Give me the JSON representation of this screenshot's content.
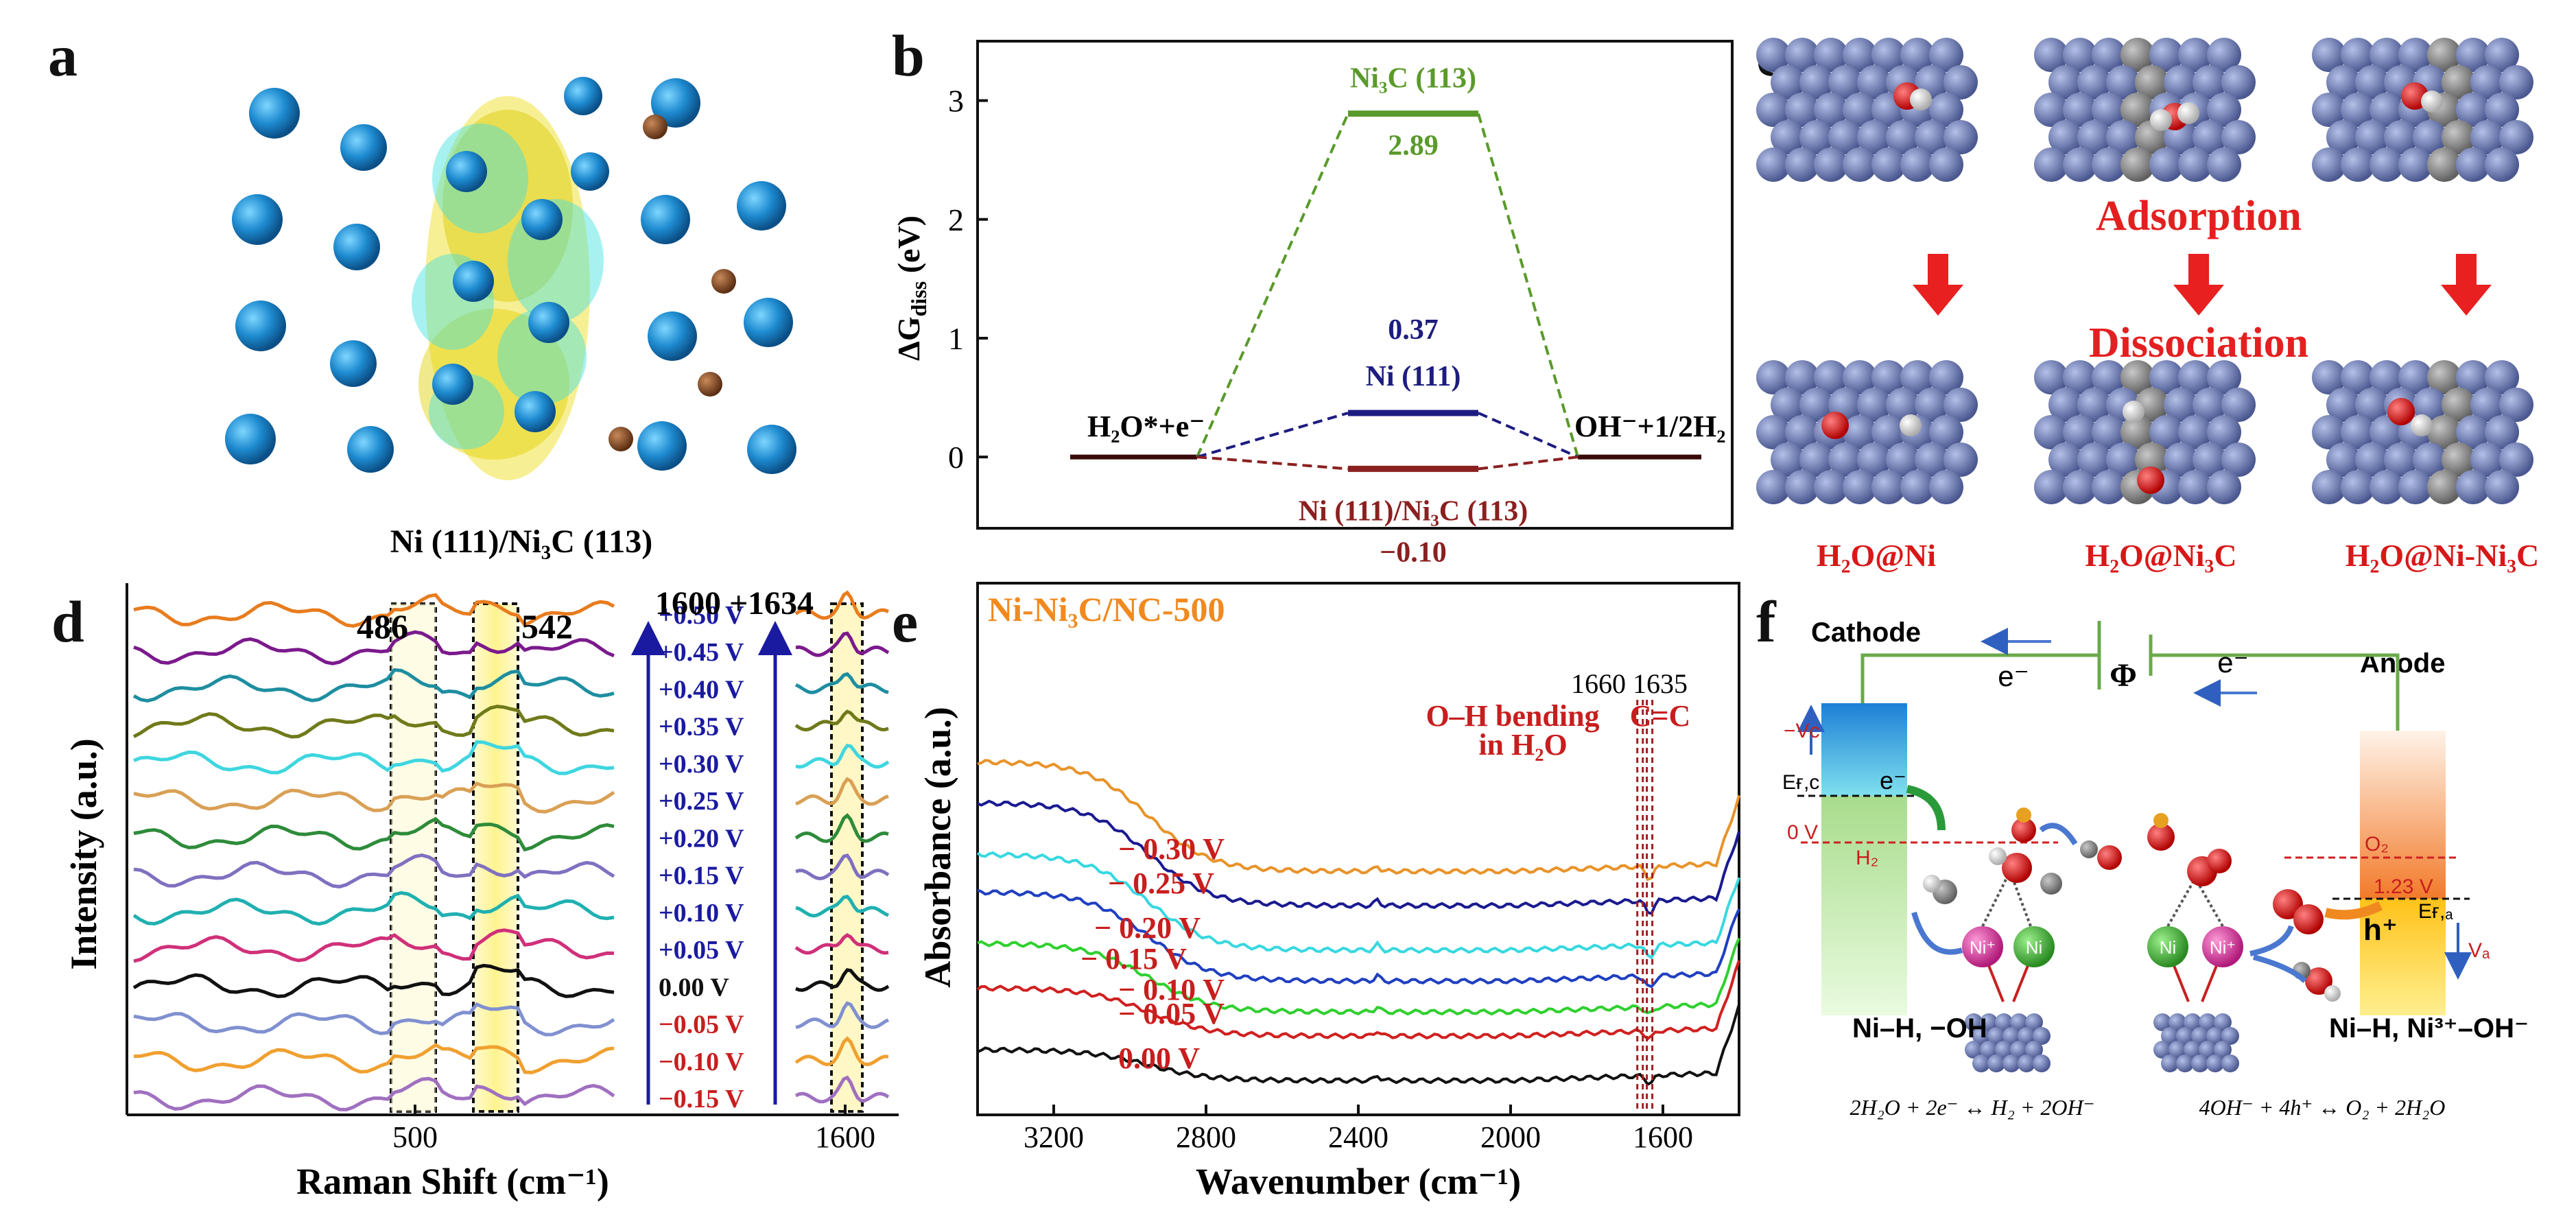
{
  "panels": {
    "a": {
      "letter": "a",
      "caption": "Ni (111)/Ni₃C (113)"
    },
    "b": {
      "letter": "b"
    },
    "c": {
      "letter": "c",
      "middle_top": "Adsorption",
      "middle_bottom": "Dissociation",
      "labels": [
        "H₂O@Ni",
        "H₂O@Ni₃C",
        "H₂O@Ni-Ni₃C"
      ]
    },
    "d": {
      "letter": "d"
    },
    "e": {
      "letter": "e"
    },
    "f": {
      "letter": "f",
      "cathode": "Cathode",
      "anode": "Anode",
      "e_minus": "e⁻",
      "phi": "Φ",
      "neg_vc": "−Vᴄ",
      "efc": "Eғ,ᴄ",
      "zero_v": "0 V",
      "h2": "H₂",
      "o2": "O₂",
      "v123": "1.23 V",
      "efa": "Eғ,ₐ",
      "hplus": "h⁺",
      "va": "Vₐ",
      "ni": "Ni",
      "ni_plus": "Ni⁺",
      "left_label": "Ni–H, −OH",
      "right_label": "Ni–H, Ni³⁺–OH⁻",
      "left_eq": "2H₂O + 2e⁻ ↔ H₂ + 2OH⁻",
      "right_eq": "4OH⁻ + 4h⁺ ↔ O₂ + 2H₂O"
    }
  },
  "chart_data": [
    {
      "panel": "b",
      "type": "line",
      "title": "",
      "xlabel": "",
      "ylabel": "ΔG_diss (eV)",
      "ylim": [
        -0.6,
        3.5
      ],
      "yticks": [
        0,
        1,
        2,
        3
      ],
      "series": [
        {
          "name": "Ni3C (113)",
          "label": "Ni₃C (113)",
          "value": 2.89,
          "value_label": "2.89",
          "color": "#5a9a2a"
        },
        {
          "name": "Ni (111)",
          "label": "Ni (111)",
          "value": 0.37,
          "value_label": "0.37",
          "color": "#1c1c80"
        },
        {
          "name": "Ni (111)/Ni3C (113)",
          "label": "Ni (111)/Ni₃C (113)",
          "value": -0.1,
          "value_label": "−0.10",
          "color": "#8b2020"
        }
      ],
      "states": {
        "initial": "H₂O*+e⁻",
        "final": "OH⁻+1/2H₂",
        "initial_value": 0,
        "final_value": 0
      }
    },
    {
      "panel": "d",
      "type": "line",
      "xlabel": "Raman Shift (cm⁻¹)",
      "ylabel": "Intensity (a.u.)",
      "xticks_left": [
        "500"
      ],
      "xticks_right": [
        "1600"
      ],
      "peak_labels": [
        "486",
        "542",
        "1600",
        "1634"
      ],
      "potentials": [
        "+0.50 V",
        "+0.45 V",
        "+0.40 V",
        "+0.35 V",
        "+0.30 V",
        "+0.25 V",
        "+0.20 V",
        "+0.15 V",
        "+0.10 V",
        "+0.05 V",
        "0.00 V",
        "−0.05 V",
        "−0.10 V",
        "−0.15 V"
      ],
      "colors": [
        "#e87c1e",
        "#7b1a8c",
        "#1e8ea0",
        "#6f7a1a",
        "#3fd6e0",
        "#d9a055",
        "#2e8b3a",
        "#8070c0",
        "#20b0b0",
        "#d0307a",
        "#111111",
        "#8090d0",
        "#f0a030",
        "#a070c0"
      ],
      "label_colors": [
        "#1a1aa0",
        "#1a1aa0",
        "#1a1aa0",
        "#1a1aa0",
        "#1a1aa0",
        "#1a1aa0",
        "#1a1aa0",
        "#1a1aa0",
        "#1a1aa0",
        "#1a1aa0",
        "#111111",
        "#c81e1e",
        "#c81e1e",
        "#c81e1e"
      ]
    },
    {
      "panel": "e",
      "type": "line",
      "title": "Ni-Ni₃C/NC-500",
      "xlabel": "Wavenumber (cm⁻¹)",
      "ylabel": "Absorbance (a.u.)",
      "xlim": [
        3400,
        1400
      ],
      "xticks": [
        3200,
        2800,
        2400,
        2000,
        1600
      ],
      "annotations": {
        "peak1": "1660",
        "peak2": "1635",
        "band1a": "O–H bending",
        "band1b": "in H₂O",
        "band2": "C=C"
      },
      "series": [
        {
          "name": "− 0.30 V",
          "color": "#e8932a"
        },
        {
          "name": "− 0.25 V",
          "color": "#1a1a90"
        },
        {
          "name": "− 0.20 V",
          "color": "#38d8e0"
        },
        {
          "name": "− 0.15 V",
          "color": "#2040c0"
        },
        {
          "name": "− 0.10 V",
          "color": "#30d030"
        },
        {
          "name": "− 0.05 V",
          "color": "#d02020"
        },
        {
          "name": "0.00 V",
          "color": "#111111"
        }
      ]
    }
  ]
}
